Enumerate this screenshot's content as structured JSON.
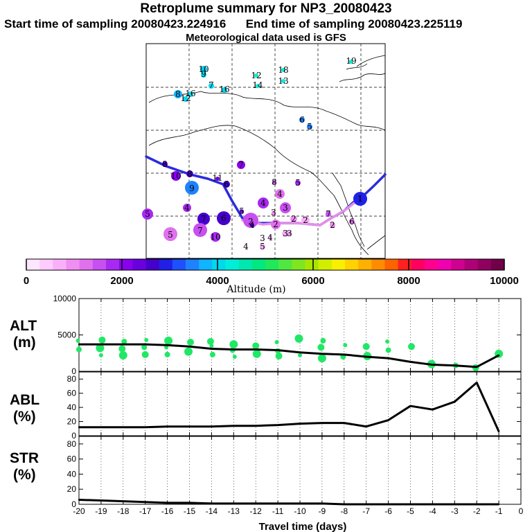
{
  "header": {
    "title": "Retroplume summary for NP3_20080423",
    "start_label": "Start time of sampling 20080423.224916",
    "end_label": "End time of sampling 20080423.225119",
    "met_label": "Meteorological data used is GFS"
  },
  "colorbar": {
    "title": "Altitude  (m)",
    "tick_labels": [
      "0",
      "2000",
      "4000",
      "6000",
      "8000",
      "10000"
    ],
    "colors": [
      "#ffe6ff",
      "#ffccff",
      "#f9b0f9",
      "#f08ef2",
      "#e070ee",
      "#c84ff0",
      "#a829f2",
      "#8a00ee",
      "#6a00dd",
      "#4500cc",
      "#2020e6",
      "#1e50ff",
      "#1e82ff",
      "#10b4ff",
      "#00d8f0",
      "#00eed8",
      "#00e8b0",
      "#00e880",
      "#20e85a",
      "#50e840",
      "#7ee620",
      "#a8e600",
      "#d2ee00",
      "#f8f000",
      "#ffd200",
      "#ffb000",
      "#ff8c00",
      "#ff6200",
      "#ff2020",
      "#ff0060",
      "#ff0090",
      "#f000b0",
      "#d00090",
      "#b00078",
      "#90005e",
      "#700048"
    ]
  },
  "map_markers": [
    "10",
    "9",
    "7",
    "16",
    "8",
    "16",
    "12",
    "12",
    "14",
    "18",
    "13",
    "19",
    "6",
    "5",
    "8",
    "10",
    "8",
    "7",
    "6",
    "11",
    "9",
    "4",
    "5",
    "7",
    "6",
    "5",
    "7",
    "10",
    "4",
    "8",
    "5",
    "4",
    "3",
    "3",
    "2",
    "2",
    "2",
    "2",
    "4",
    "5",
    "3",
    "3",
    "1",
    "7",
    "6",
    "5",
    "4",
    "4",
    "3",
    "2"
  ],
  "chart_data": [
    {
      "type": "line",
      "panel": "ALT",
      "ylabel": "ALT\n(m)",
      "ylim": [
        0,
        10000
      ],
      "ytick_labels": [
        "0",
        "5000",
        "10000"
      ],
      "x": [
        -20,
        -19,
        -18,
        -17,
        -16,
        -15,
        -14,
        -13,
        -12,
        -11,
        -10,
        -9,
        -8,
        -7,
        -6,
        -5,
        -4,
        -3,
        -2,
        -1
      ],
      "values": [
        3700,
        3700,
        3700,
        3700,
        3600,
        3400,
        3100,
        3000,
        3000,
        2900,
        2600,
        2400,
        2300,
        2000,
        1800,
        1300,
        900,
        800,
        600,
        2200
      ],
      "scatter_series": {
        "name": "individual particle altitudes",
        "x": [
          -20,
          -20,
          -19,
          -19,
          -19,
          -18,
          -18,
          -18,
          -17,
          -17,
          -17,
          -16,
          -16,
          -16,
          -15,
          -15,
          -14,
          -14,
          -14,
          -13,
          -13,
          -13,
          -12,
          -12,
          -11,
          -11,
          -11,
          -10,
          -10,
          -9,
          -9,
          -9,
          -8,
          -8,
          -7,
          -7,
          -6,
          -6,
          -5,
          -4,
          -4,
          -3,
          -2,
          -1
        ],
        "values": [
          4200,
          3000,
          4300,
          3200,
          2200,
          4100,
          3100,
          2200,
          4300,
          3300,
          2300,
          4200,
          3300,
          2300,
          4000,
          2700,
          3500,
          2300,
          4100,
          3700,
          2000,
          2900,
          3500,
          2400,
          4000,
          2800,
          2100,
          4500,
          2200,
          4200,
          3300,
          1800,
          3600,
          2000,
          3400,
          2100,
          4100,
          2900,
          3400,
          1000,
          700,
          800,
          500,
          2400
        ]
      }
    },
    {
      "type": "line",
      "panel": "ABL",
      "ylabel": "ABL\n(%)",
      "ylim": [
        0,
        90
      ],
      "ytick_labels": [
        "0",
        "20",
        "40",
        "60",
        "80"
      ],
      "x": [
        -20,
        -19,
        -18,
        -17,
        -16,
        -15,
        -14,
        -13,
        -12,
        -11,
        -10,
        -9,
        -8,
        -7,
        -6,
        -5,
        -4,
        -3,
        -2,
        -1
      ],
      "values": [
        12,
        12,
        12,
        12,
        13,
        13,
        13,
        14,
        14,
        15,
        17,
        18,
        18,
        13,
        22,
        42,
        37,
        48,
        75,
        6
      ]
    },
    {
      "type": "line",
      "panel": "STR",
      "ylabel": "STR\n(%)",
      "ylim": [
        0,
        90
      ],
      "ytick_labels": [
        "0",
        "20",
        "40",
        "60",
        "80"
      ],
      "x": [
        -20,
        -19,
        -18,
        -17,
        -16,
        -15,
        -14,
        -13,
        -12,
        -11,
        -10,
        -9,
        -8,
        -7,
        -6,
        -5,
        -4,
        -3,
        -2,
        -1
      ],
      "values": [
        6,
        5,
        4,
        3,
        2,
        2,
        1,
        1,
        1,
        1,
        1,
        1,
        0,
        0,
        0,
        0,
        0,
        0,
        0,
        0
      ],
      "xlabel": "Travel time (days)",
      "xtick_labels": [
        "-20",
        "-19",
        "-18",
        "-17",
        "-16",
        "-15",
        "-14",
        "-13",
        "-12",
        "-11",
        "-10",
        "-9",
        "-8",
        "-7",
        "-6",
        "-5",
        "-4",
        "-3",
        "-2",
        "-1",
        "0"
      ]
    }
  ]
}
